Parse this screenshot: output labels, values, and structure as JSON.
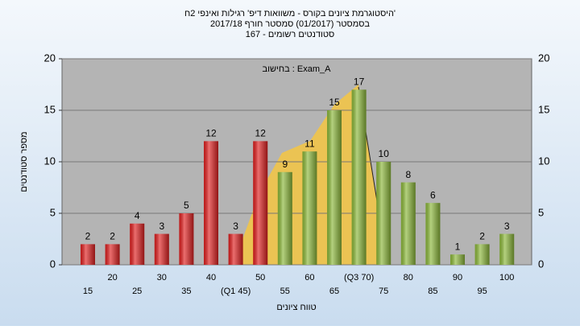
{
  "chart_data": {
    "type": "bar",
    "title": "היסטוגרמת ציונים בקורס - משוואות דיפ' רגילות ואינפי 2ח'",
    "subtitle": "בסמסטר (01/2017)  סמסטר חורף 2017/18",
    "subtitle2": "סטודנטים רשומים - 167",
    "annotation": "בחישוב : Exam_A",
    "y_label": "מספר סטודנטים",
    "x_label": "טווח ציונים",
    "categories": [
      "15",
      "20",
      "25",
      "30",
      "35",
      "40",
      "(Q1 45)",
      "50",
      "55",
      "60",
      "65",
      "(Q3 70)",
      "75",
      "80",
      "85",
      "90",
      "95",
      "100"
    ],
    "values": [
      2,
      2,
      4,
      3,
      5,
      12,
      3,
      12,
      9,
      11,
      15,
      17,
      10,
      8,
      6,
      1,
      2,
      3
    ],
    "colors": [
      "#e02020",
      "#e02020",
      "#e02020",
      "#e02020",
      "#e02020",
      "#e02020",
      "#e02020",
      "#e02020",
      "#8cb83a",
      "#8cb83a",
      "#8cb83a",
      "#8cb83a",
      "#8cb83a",
      "#8cb83a",
      "#8cb83a",
      "#8cb83a",
      "#8cb83a",
      "#8cb83a"
    ],
    "ylim": [
      0,
      20
    ],
    "yticks": [
      0,
      5,
      10,
      15,
      20
    ],
    "grid": true
  }
}
